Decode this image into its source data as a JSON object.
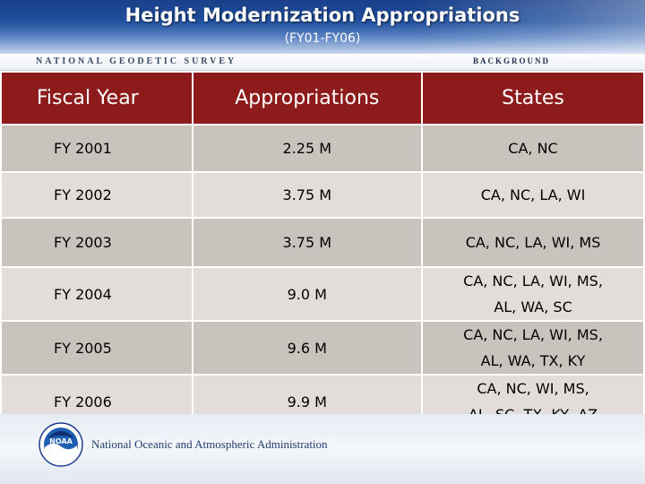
{
  "header": {
    "title": "Height Modernization Appropriations",
    "subtitle": "(FY01-FY06)"
  },
  "banner": {
    "org": "NATIONAL GEODETIC SURVEY",
    "section": "BACKGROUND"
  },
  "table": {
    "headers": [
      "Fiscal Year",
      "Appropriations",
      "States"
    ],
    "rows": [
      {
        "year": "FY 2001",
        "amount": "2.25 M",
        "states_line1": "CA, NC",
        "states_line2": ""
      },
      {
        "year": "FY 2002",
        "amount": "3.75 M",
        "states_line1": "CA, NC, LA, WI",
        "states_line2": ""
      },
      {
        "year": "FY 2003",
        "amount": "3.75 M",
        "states_line1": "CA, NC, LA, WI, MS",
        "states_line2": ""
      },
      {
        "year": "FY 2004",
        "amount": "9.0 M",
        "states_line1": "CA, NC, LA, WI, MS,",
        "states_line2": "AL, WA, SC"
      },
      {
        "year": "FY 2005",
        "amount": "9.6 M",
        "states_line1": "CA, NC, LA, WI, MS,",
        "states_line2": "AL, WA, TX, KY"
      },
      {
        "year": "FY 2006",
        "amount": "9.9 M",
        "states_line1": "CA, NC, WI, MS,",
        "states_line2": "AL, SC, TX, KY, AZ"
      }
    ]
  },
  "footer": {
    "logo_text": "NOAA",
    "agency": "National Oceanic and Atmospheric Administration"
  },
  "colors": {
    "header_blue": "#20509e",
    "table_header_red": "#8e1b1b",
    "row_odd": "#c9c3bd",
    "row_even": "#e2ddd8"
  }
}
